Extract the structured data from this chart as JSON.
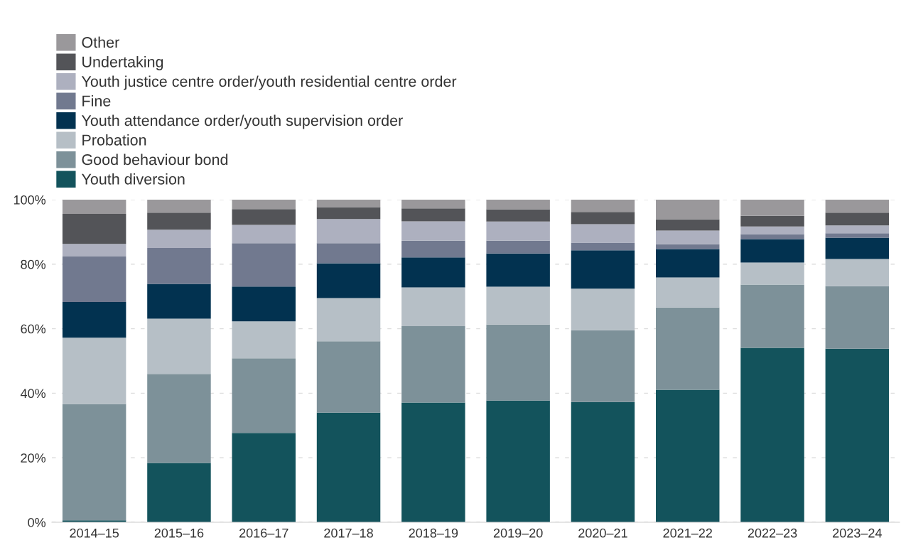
{
  "chart_data": {
    "type": "bar",
    "stacked": true,
    "categories": [
      "2014–15",
      "2015–16",
      "2016–17",
      "2017–18",
      "2018–19",
      "2019–20",
      "2020–21",
      "2021–22",
      "2022–23",
      "2023–24"
    ],
    "series": [
      {
        "name": "Youth diversion",
        "color": "#13535c",
        "values": [
          0.6,
          18.4,
          27.7,
          34.0,
          37.1,
          37.7,
          37.3,
          41.1,
          54.1,
          53.8
        ]
      },
      {
        "name": "Good behaviour bond",
        "color": "#7d9199",
        "values": [
          36.1,
          27.6,
          23.1,
          22.1,
          23.7,
          23.6,
          22.2,
          25.5,
          19.6,
          19.4
        ]
      },
      {
        "name": "Probation",
        "color": "#b6bfc6",
        "values": [
          20.5,
          17.1,
          11.5,
          13.4,
          12.0,
          11.7,
          12.9,
          9.3,
          6.8,
          8.4
        ]
      },
      {
        "name": "Youth attendance order/youth supervision order",
        "color": "#023250",
        "values": [
          11.1,
          10.8,
          10.8,
          10.8,
          9.3,
          10.3,
          11.9,
          8.8,
          7.3,
          6.6
        ]
      },
      {
        "name": "Fine",
        "color": "#71798f",
        "values": [
          14.1,
          11.1,
          13.4,
          6.2,
          5.2,
          4.0,
          2.4,
          1.5,
          1.5,
          1.4
        ]
      },
      {
        "name": "Youth justice centre order/youth residential centre order",
        "color": "#adb0bf",
        "values": [
          3.9,
          5.7,
          5.7,
          7.5,
          6.0,
          5.9,
          5.7,
          4.2,
          2.4,
          2.4
        ]
      },
      {
        "name": "Undertaking",
        "color": "#535458",
        "values": [
          9.3,
          5.3,
          4.9,
          3.7,
          4.0,
          3.8,
          3.8,
          3.5,
          3.3,
          4.0
        ]
      },
      {
        "name": "Other",
        "color": "#9a989b",
        "values": [
          4.4,
          4.0,
          2.9,
          2.3,
          2.7,
          3.0,
          3.8,
          6.1,
          5.0,
          4.0
        ]
      }
    ],
    "ylim": [
      0,
      100
    ],
    "yticks": [
      {
        "value": 0,
        "label": "0%"
      },
      {
        "value": 20,
        "label": "20%"
      },
      {
        "value": 40,
        "label": "40%"
      },
      {
        "value": 60,
        "label": "60%"
      },
      {
        "value": 80,
        "label": "80%"
      },
      {
        "value": 100,
        "label": "100%"
      }
    ],
    "grid": "y",
    "legend": "top left"
  }
}
